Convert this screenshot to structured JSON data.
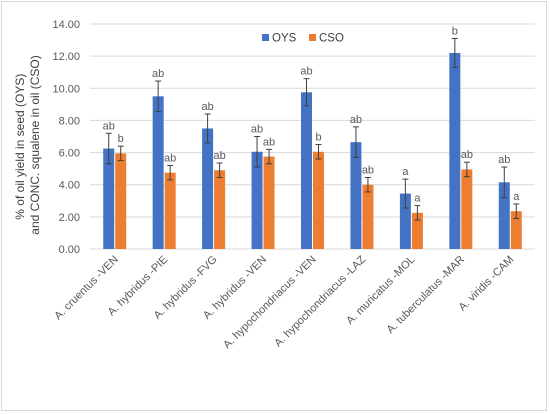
{
  "chart_data": {
    "type": "bar",
    "categories": [
      "A. cruentus -VEN",
      "A. hybridus -PIE",
      "A. hybridus -FVG",
      "A. hybridus -VEN",
      "A. hypochondriacus -VEN",
      "A. hypochondriacus -LAZ",
      "A. muricatus -MOL",
      "A. tuberculatus -MAR",
      "A. viridis -CAM"
    ],
    "series": [
      {
        "name": "OYS",
        "color": "#4472c4",
        "values": [
          6.25,
          9.5,
          7.5,
          6.05,
          9.75,
          6.65,
          3.45,
          12.2,
          4.15
        ],
        "errors": [
          0.95,
          0.95,
          0.9,
          0.95,
          0.85,
          0.95,
          0.9,
          0.9,
          0.95
        ],
        "labels": [
          "ab",
          "ab",
          "ab",
          "ab",
          "ab",
          "ab",
          "a",
          "b",
          "ab"
        ]
      },
      {
        "name": "CSO",
        "color": "#ed7d31",
        "values": [
          5.95,
          4.75,
          4.9,
          5.75,
          6.05,
          4.0,
          2.25,
          4.95,
          2.35
        ],
        "errors": [
          0.45,
          0.45,
          0.45,
          0.45,
          0.45,
          0.45,
          0.45,
          0.45,
          0.45
        ],
        "labels": [
          "b",
          "ab",
          "ab",
          "ab",
          "b",
          "ab",
          "a",
          "ab",
          "a"
        ]
      }
    ],
    "ylabel_line1": "% of oil yield in seed (OYS)",
    "ylabel_line2": "and CONC. squalene in oil (CSO)",
    "ylim": [
      0,
      14
    ],
    "yticks": [
      "0.00",
      "2.00",
      "4.00",
      "6.00",
      "8.00",
      "10.00",
      "12.00",
      "14.00"
    ],
    "grid": true,
    "legend": "top-center"
  }
}
